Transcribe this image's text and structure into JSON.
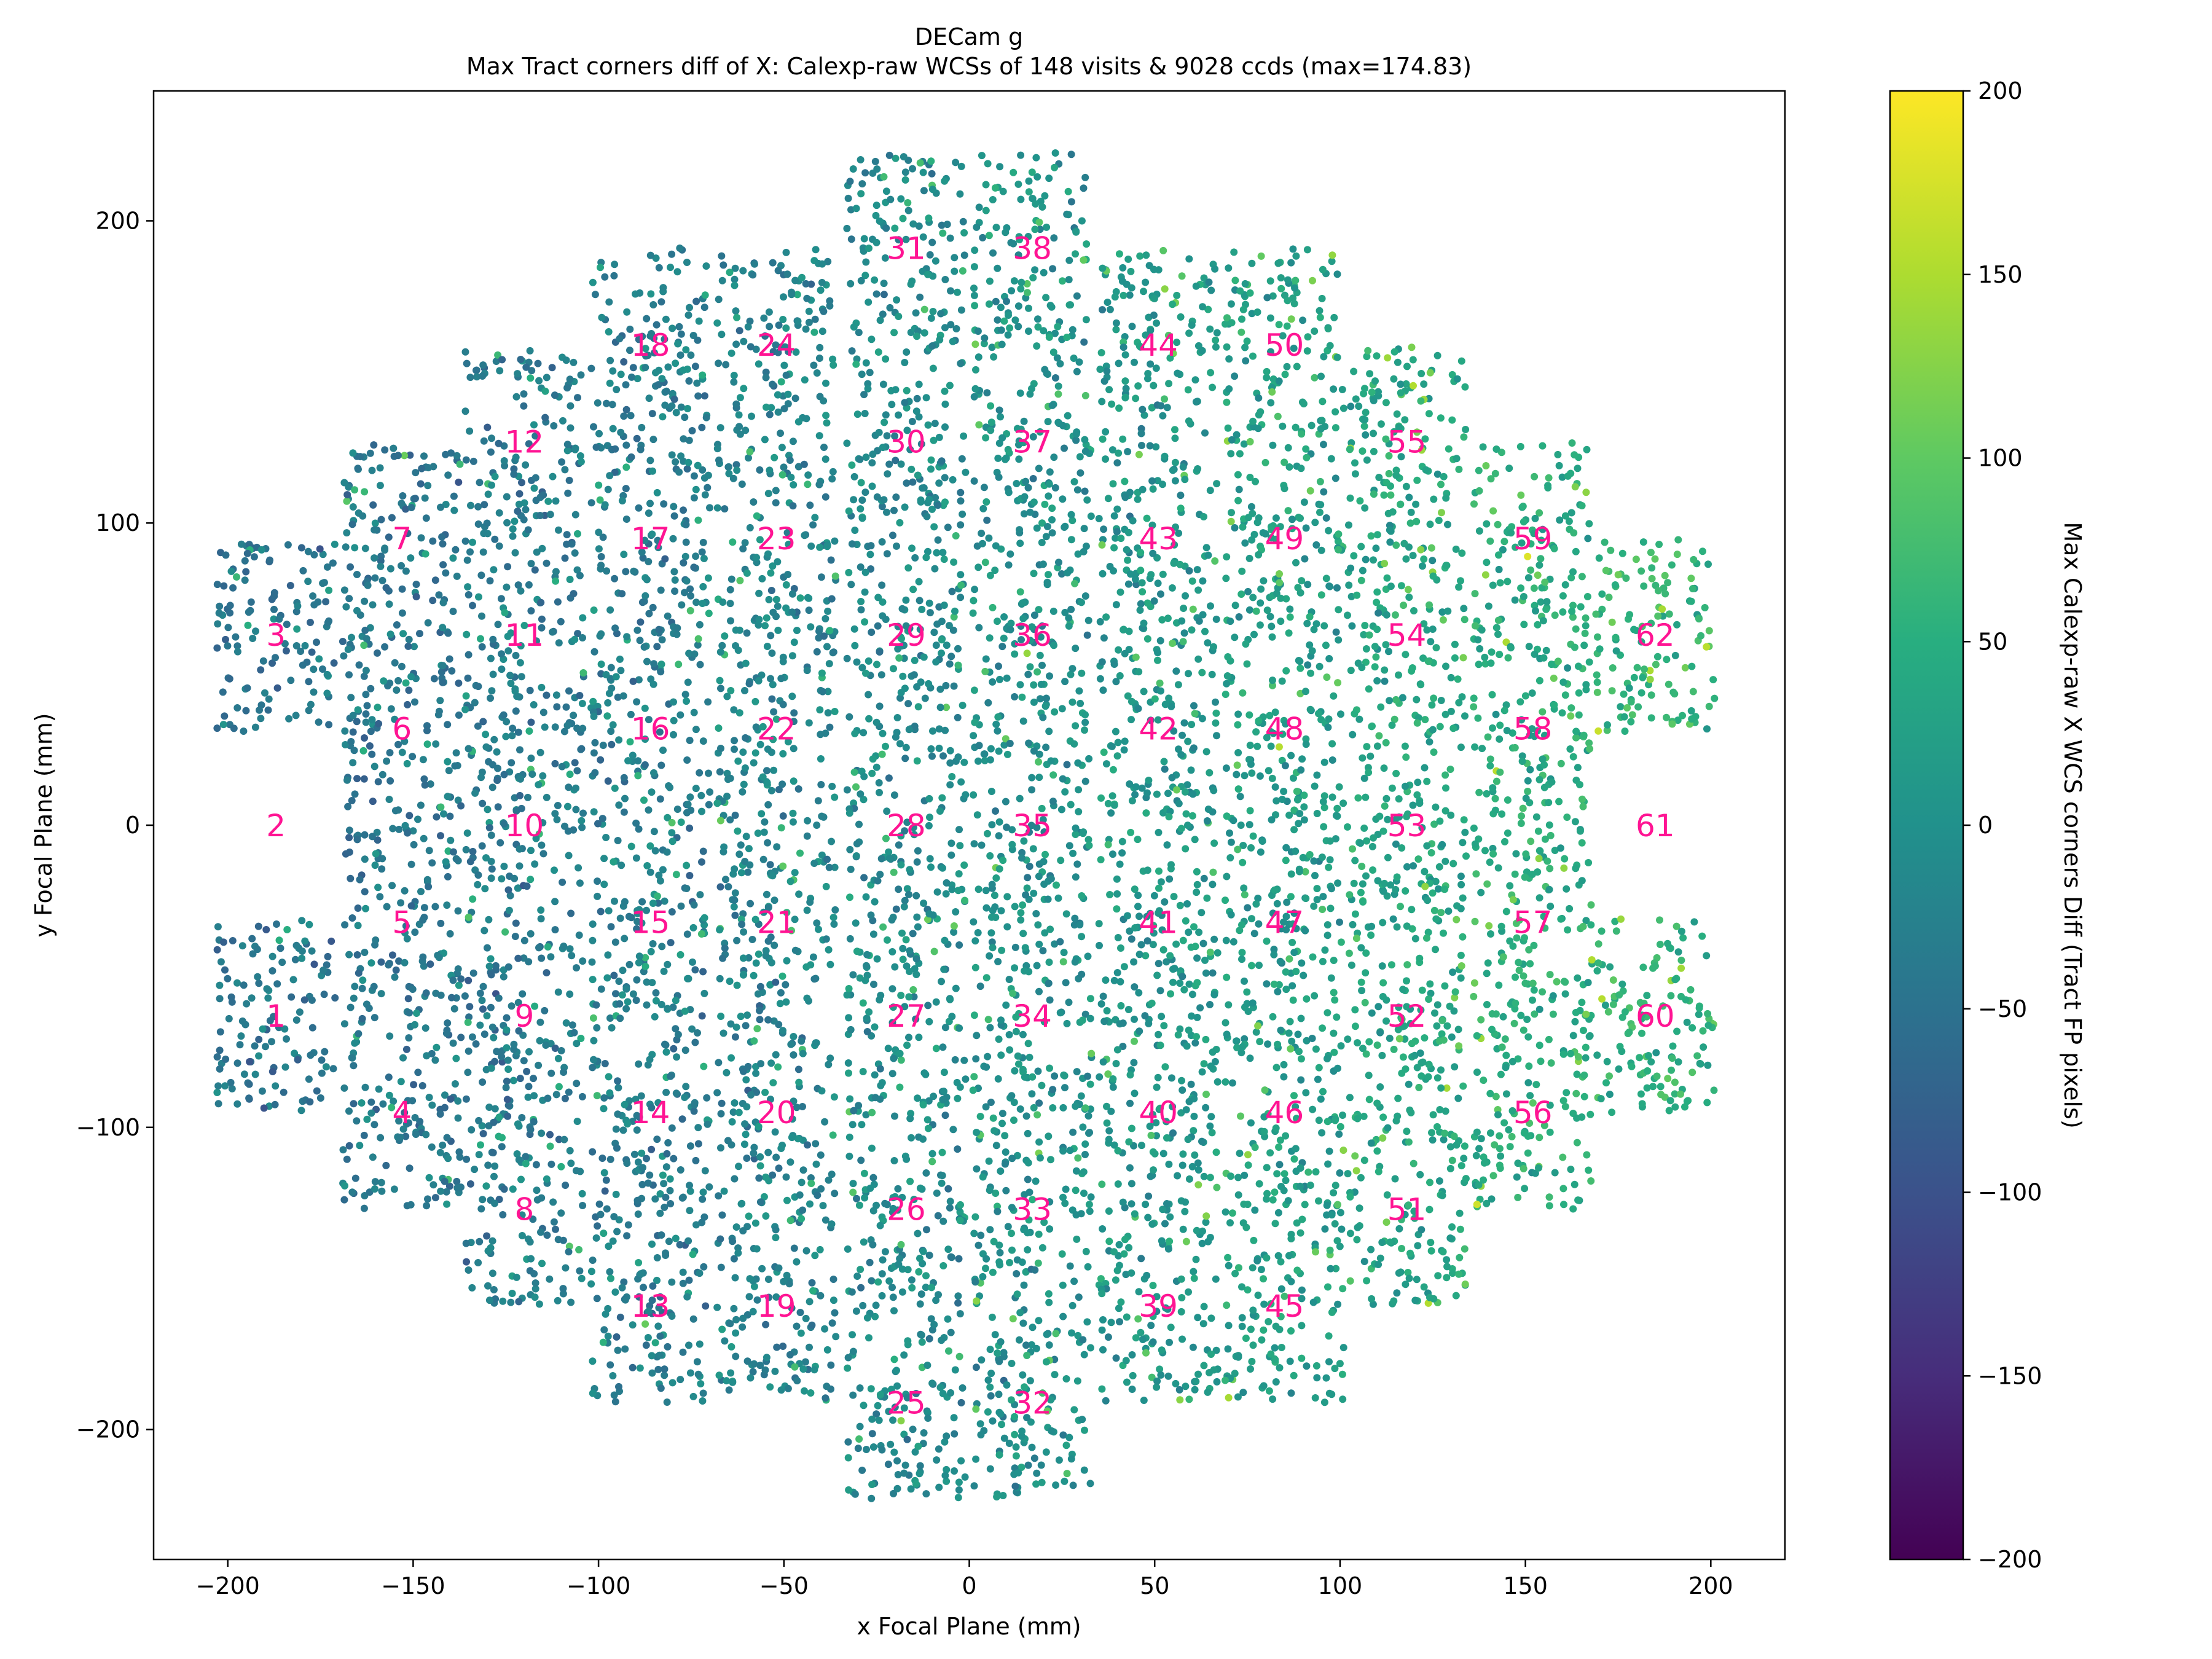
{
  "chart_data": {
    "type": "scatter",
    "title": "DECam g",
    "subtitle": "Max Tract corners diff of X: Calexp-raw WCSs of 148 visits & 9028 ccds (max=174.83)",
    "xlabel": "x Focal Plane (mm)",
    "ylabel": "y Focal Plane (mm)",
    "xlim": [
      -220,
      220
    ],
    "ylim": [
      -243,
      243
    ],
    "xticks": [
      -200,
      -150,
      -100,
      -50,
      0,
      50,
      100,
      150,
      200
    ],
    "xtick_labels": [
      "−200",
      "−150",
      "−100",
      "−50",
      "0",
      "50",
      "100",
      "150",
      "200"
    ],
    "yticks": [
      -200,
      -100,
      0,
      100,
      200
    ],
    "ytick_labels": [
      "−200",
      "−100",
      "0",
      "100",
      "200"
    ],
    "colorbar": {
      "label": "Max Calexp-raw X WCS corners Diff (Tract FP pixels)",
      "colormap": "viridis",
      "range": [
        -200,
        200
      ],
      "ticks": [
        -200,
        -150,
        -100,
        -50,
        0,
        50,
        100,
        150,
        200
      ],
      "tick_labels": [
        "−200",
        "−150",
        "−100",
        "−50",
        "0",
        "50",
        "100",
        "150",
        "200"
      ]
    },
    "grid": false,
    "ccd_size_mm": {
      "width": 32,
      "height": 64
    },
    "label_color": "#ff1493",
    "ccds": [
      {
        "id": 1,
        "x": -187,
        "y": -63
      },
      {
        "id": 2,
        "x": -187,
        "y": 0
      },
      {
        "id": 3,
        "x": -187,
        "y": 63
      },
      {
        "id": 4,
        "x": -153,
        "y": -95
      },
      {
        "id": 5,
        "x": -153,
        "y": -32
      },
      {
        "id": 6,
        "x": -153,
        "y": 32
      },
      {
        "id": 7,
        "x": -153,
        "y": 95
      },
      {
        "id": 8,
        "x": -120,
        "y": -127
      },
      {
        "id": 9,
        "x": -120,
        "y": -63
      },
      {
        "id": 10,
        "x": -120,
        "y": 0
      },
      {
        "id": 11,
        "x": -120,
        "y": 63
      },
      {
        "id": 12,
        "x": -120,
        "y": 127
      },
      {
        "id": 13,
        "x": -86,
        "y": -159
      },
      {
        "id": 14,
        "x": -86,
        "y": -95
      },
      {
        "id": 15,
        "x": -86,
        "y": -32
      },
      {
        "id": 16,
        "x": -86,
        "y": 32
      },
      {
        "id": 17,
        "x": -86,
        "y": 95
      },
      {
        "id": 18,
        "x": -86,
        "y": 159
      },
      {
        "id": 19,
        "x": -52,
        "y": -159
      },
      {
        "id": 20,
        "x": -52,
        "y": -95
      },
      {
        "id": 21,
        "x": -52,
        "y": -32
      },
      {
        "id": 22,
        "x": -52,
        "y": 32
      },
      {
        "id": 23,
        "x": -52,
        "y": 95
      },
      {
        "id": 24,
        "x": -52,
        "y": 159
      },
      {
        "id": 25,
        "x": -17,
        "y": -191
      },
      {
        "id": 26,
        "x": -17,
        "y": -127
      },
      {
        "id": 27,
        "x": -17,
        "y": -63
      },
      {
        "id": 28,
        "x": -17,
        "y": 0
      },
      {
        "id": 29,
        "x": -17,
        "y": 63
      },
      {
        "id": 30,
        "x": -17,
        "y": 127
      },
      {
        "id": 31,
        "x": -17,
        "y": 191
      },
      {
        "id": 32,
        "x": 17,
        "y": -191
      },
      {
        "id": 33,
        "x": 17,
        "y": -127
      },
      {
        "id": 34,
        "x": 17,
        "y": -63
      },
      {
        "id": 35,
        "x": 17,
        "y": 0
      },
      {
        "id": 36,
        "x": 17,
        "y": 63
      },
      {
        "id": 37,
        "x": 17,
        "y": 127
      },
      {
        "id": 38,
        "x": 17,
        "y": 191
      },
      {
        "id": 39,
        "x": 51,
        "y": -159
      },
      {
        "id": 40,
        "x": 51,
        "y": -95
      },
      {
        "id": 41,
        "x": 51,
        "y": -32
      },
      {
        "id": 42,
        "x": 51,
        "y": 32
      },
      {
        "id": 43,
        "x": 51,
        "y": 95
      },
      {
        "id": 44,
        "x": 51,
        "y": 159
      },
      {
        "id": 45,
        "x": 85,
        "y": -159
      },
      {
        "id": 46,
        "x": 85,
        "y": -95
      },
      {
        "id": 47,
        "x": 85,
        "y": -32
      },
      {
        "id": 48,
        "x": 85,
        "y": 32
      },
      {
        "id": 49,
        "x": 85,
        "y": 95
      },
      {
        "id": 50,
        "x": 85,
        "y": 159
      },
      {
        "id": 51,
        "x": 118,
        "y": -127
      },
      {
        "id": 52,
        "x": 118,
        "y": -63
      },
      {
        "id": 53,
        "x": 118,
        "y": 0
      },
      {
        "id": 54,
        "x": 118,
        "y": 63
      },
      {
        "id": 55,
        "x": 118,
        "y": 127
      },
      {
        "id": 56,
        "x": 152,
        "y": -95
      },
      {
        "id": 57,
        "x": 152,
        "y": -32
      },
      {
        "id": 58,
        "x": 152,
        "y": 32
      },
      {
        "id": 59,
        "x": 152,
        "y": 95
      },
      {
        "id": 60,
        "x": 185,
        "y": -63
      },
      {
        "id": 61,
        "x": 185,
        "y": 0
      },
      {
        "id": 62,
        "x": 185,
        "y": 63
      }
    ],
    "empty_ccds": [
      2,
      61
    ],
    "ccd_value_bias": {
      "1": -45,
      "2": 0,
      "3": -45,
      "4": -40,
      "5": -40,
      "6": -40,
      "7": -40,
      "8": -35,
      "9": -35,
      "10": -35,
      "11": -35,
      "12": -35,
      "13": -30,
      "14": -30,
      "15": -30,
      "16": -30,
      "17": -30,
      "18": -30,
      "19": -20,
      "20": -20,
      "21": -20,
      "22": -20,
      "23": -20,
      "24": -20,
      "25": -10,
      "26": -10,
      "27": -10,
      "28": -10,
      "29": -10,
      "30": -10,
      "31": -10,
      "32": 0,
      "33": 0,
      "34": 0,
      "35": 0,
      "36": 0,
      "37": 0,
      "38": 0,
      "39": 10,
      "40": 10,
      "41": 10,
      "42": 10,
      "43": 10,
      "44": 10,
      "45": 20,
      "46": 20,
      "47": 20,
      "48": 20,
      "49": 20,
      "50": 20,
      "51": 35,
      "52": 35,
      "53": 35,
      "54": 35,
      "55": 35,
      "56": 45,
      "57": 45,
      "58": 45,
      "59": 45,
      "60": 55,
      "61": 0,
      "62": 55
    }
  }
}
